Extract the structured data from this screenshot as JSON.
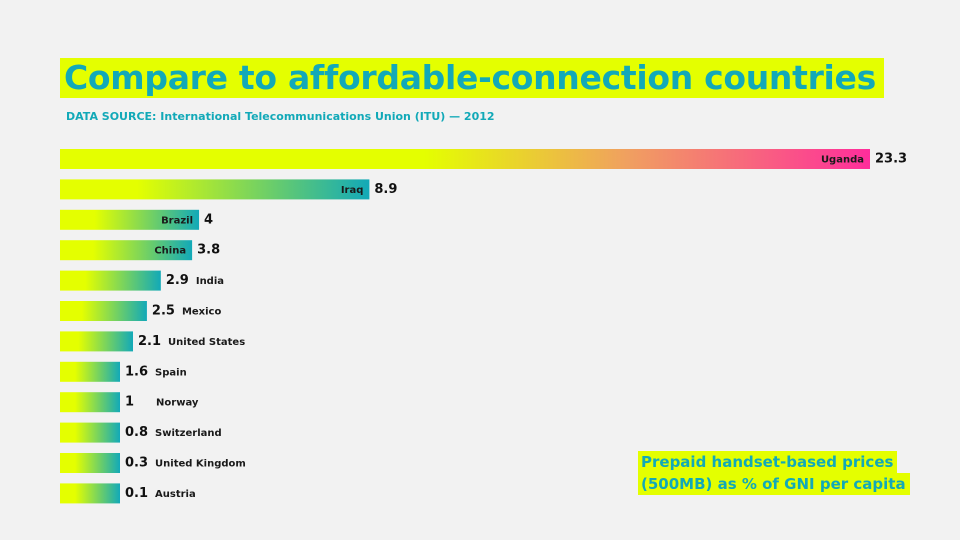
{
  "colors": {
    "background": "#f2f2f2",
    "highlight": "#e4ff00",
    "accent": "#12a9b8",
    "bar_start": "#e4ff00",
    "bar_end": "#12a9b8",
    "top_bar_mid": "#f0a060",
    "top_bar_end": "#ff2d9b"
  },
  "note": {
    "line1": "Prepaid handset-based prices",
    "line2": "(500MB) as % of GNI per capita"
  },
  "chart_data": {
    "type": "bar",
    "orientation": "horizontal",
    "title": "Compare to affordable-connection countries",
    "subtitle": "DATA SOURCE: International Telecommunications Union (ITU) — 2012",
    "categories": [
      "Uganda",
      "Iraq",
      "Brazil",
      "China",
      "India",
      "Mexico",
      "United States",
      "Spain",
      "Norway",
      "Switzerland",
      "United Kingdom",
      "Austria"
    ],
    "values": [
      23.3,
      8.9,
      4,
      3.8,
      2.9,
      2.5,
      2.1,
      1.6,
      1,
      0.8,
      0.3,
      0.1
    ],
    "value_labels": [
      "23.3",
      "8.9",
      "4",
      "3.8",
      "2.9",
      "2.5",
      "2.1",
      "1.6",
      "1",
      "0.8",
      "0.3",
      "0.1"
    ],
    "label_inside": [
      true,
      true,
      true,
      true,
      false,
      false,
      false,
      false,
      false,
      false,
      false,
      false
    ],
    "xlabel": "",
    "ylabel": "",
    "grid": false,
    "legend": "none"
  }
}
